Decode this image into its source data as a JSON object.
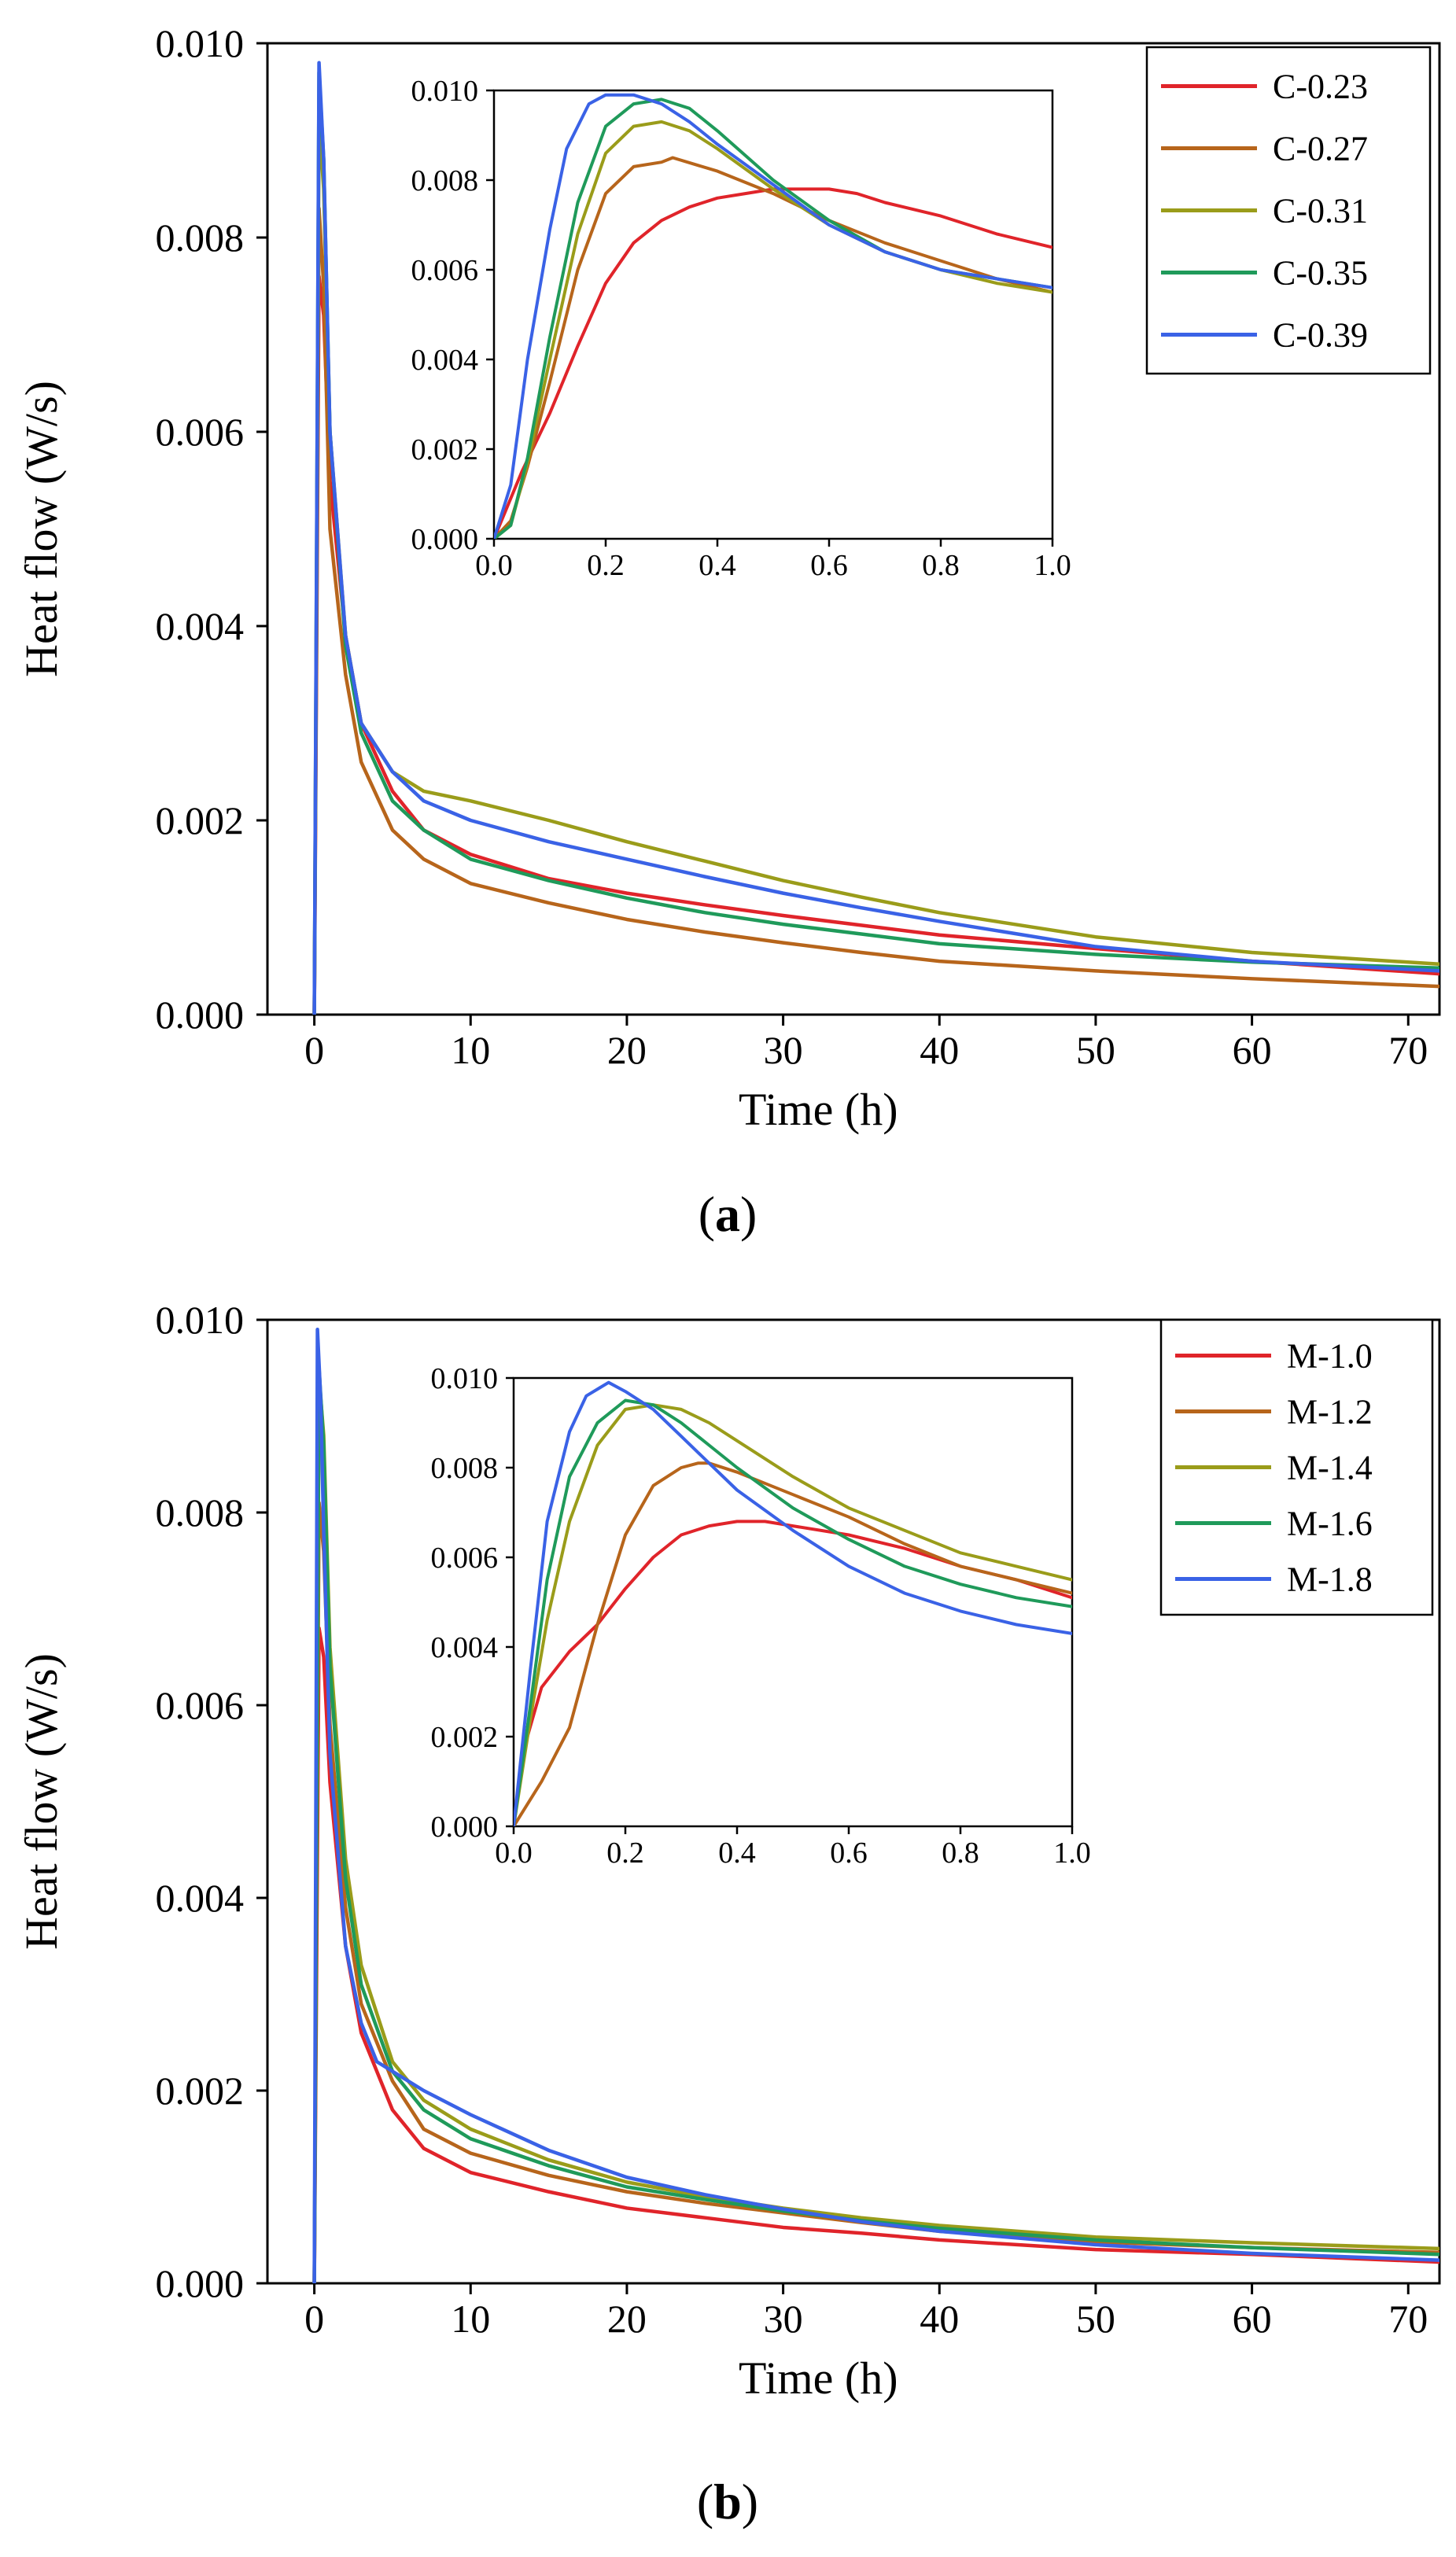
{
  "colors": {
    "red": "#e0242a",
    "brown": "#b7651b",
    "olive": "#9a9c1a",
    "green": "#1f9a5a",
    "blue": "#3a62e6"
  },
  "chart_data": [
    {
      "type": "line",
      "panel_label": "(a)",
      "panel_letter": "a",
      "xlabel": "Time (h)",
      "ylabel": "Heat flow (W/s)",
      "xlim": [
        -3,
        72
      ],
      "ylim": [
        0,
        0.01
      ],
      "xticks": [
        0,
        10,
        20,
        30,
        40,
        50,
        60,
        70
      ],
      "yticks": [
        0.0,
        0.002,
        0.004,
        0.006,
        0.008,
        0.01
      ],
      "ytick_labels": [
        "0.000",
        "0.002",
        "0.004",
        "0.006",
        "0.008",
        "0.010"
      ],
      "legend_position": "top-right",
      "series": [
        {
          "name": "C-0.23",
          "color": "#e0242a",
          "x": [
            0,
            0.3,
            0.6,
            1,
            2,
            3,
            5,
            7,
            10,
            15,
            20,
            25,
            30,
            35,
            40,
            50,
            60,
            72
          ],
          "y": [
            0,
            0.0076,
            0.0072,
            0.0055,
            0.0039,
            0.003,
            0.0023,
            0.0019,
            0.00165,
            0.0014,
            0.00125,
            0.00113,
            0.00102,
            0.00092,
            0.00082,
            0.00068,
            0.00055,
            0.00042
          ]
        },
        {
          "name": "C-0.27",
          "color": "#b7651b",
          "x": [
            0,
            0.3,
            0.6,
            1,
            2,
            3,
            5,
            7,
            10,
            15,
            20,
            25,
            30,
            35,
            40,
            50,
            60,
            72
          ],
          "y": [
            0,
            0.0083,
            0.0075,
            0.005,
            0.0035,
            0.0026,
            0.0019,
            0.0016,
            0.00135,
            0.00115,
            0.00098,
            0.00085,
            0.00074,
            0.00064,
            0.00055,
            0.00045,
            0.00037,
            0.00029
          ]
        },
        {
          "name": "C-0.31",
          "color": "#9a9c1a",
          "x": [
            0,
            0.3,
            0.6,
            1,
            2,
            3,
            5,
            7,
            10,
            15,
            20,
            25,
            30,
            35,
            40,
            50,
            60,
            72
          ],
          "y": [
            0,
            0.0092,
            0.0085,
            0.006,
            0.0039,
            0.003,
            0.0025,
            0.0023,
            0.0022,
            0.002,
            0.00178,
            0.00158,
            0.00138,
            0.00121,
            0.00105,
            0.0008,
            0.00064,
            0.00052
          ]
        },
        {
          "name": "C-0.35",
          "color": "#1f9a5a",
          "x": [
            0,
            0.3,
            0.6,
            1,
            2,
            3,
            5,
            7,
            10,
            15,
            20,
            25,
            30,
            35,
            40,
            50,
            60,
            72
          ],
          "y": [
            0,
            0.0097,
            0.0088,
            0.006,
            0.0038,
            0.0029,
            0.0022,
            0.0019,
            0.0016,
            0.00138,
            0.0012,
            0.00105,
            0.00093,
            0.00083,
            0.00073,
            0.00062,
            0.00054,
            0.00048
          ]
        },
        {
          "name": "C-0.39",
          "color": "#3a62e6",
          "x": [
            0,
            0.3,
            0.6,
            1,
            2,
            3,
            5,
            7,
            10,
            15,
            20,
            25,
            30,
            35,
            40,
            50,
            60,
            72
          ],
          "y": [
            0,
            0.0098,
            0.0088,
            0.006,
            0.0039,
            0.003,
            0.0025,
            0.0022,
            0.002,
            0.00178,
            0.0016,
            0.00142,
            0.00125,
            0.0011,
            0.00096,
            0.0007,
            0.00055,
            0.00045
          ]
        }
      ],
      "inset": {
        "xlim": [
          0,
          1
        ],
        "ylim": [
          0,
          0.01
        ],
        "xticks": [
          0,
          0.2,
          0.4,
          0.6,
          0.8,
          1.0
        ],
        "xtick_labels": [
          "0.0",
          "0.2",
          "0.4",
          "0.6",
          "0.8",
          "1.0"
        ],
        "yticks": [
          0,
          0.002,
          0.004,
          0.006,
          0.008,
          0.01
        ],
        "ytick_labels": [
          "0.000",
          "0.002",
          "0.004",
          "0.006",
          "0.008",
          "0.010"
        ],
        "series": [
          {
            "name": "C-0.23",
            "color": "#e0242a",
            "x": [
              0,
              0.05,
              0.1,
              0.15,
              0.2,
              0.25,
              0.3,
              0.35,
              0.4,
              0.45,
              0.5,
              0.55,
              0.6,
              0.65,
              0.7,
              0.8,
              0.9,
              1.0
            ],
            "y": [
              0,
              0.0015,
              0.0028,
              0.0043,
              0.0057,
              0.0066,
              0.0071,
              0.0074,
              0.0076,
              0.0077,
              0.0078,
              0.0078,
              0.0078,
              0.0077,
              0.0075,
              0.0072,
              0.0068,
              0.0065
            ]
          },
          {
            "name": "C-0.27",
            "color": "#b7651b",
            "x": [
              0,
              0.03,
              0.06,
              0.1,
              0.15,
              0.2,
              0.25,
              0.3,
              0.32,
              0.4,
              0.5,
              0.6,
              0.7,
              0.8,
              0.9,
              1.0
            ],
            "y": [
              0,
              0.0004,
              0.0016,
              0.0035,
              0.006,
              0.0077,
              0.0083,
              0.0084,
              0.0085,
              0.0082,
              0.0077,
              0.0071,
              0.0066,
              0.0062,
              0.0058,
              0.0055
            ]
          },
          {
            "name": "C-0.31",
            "color": "#9a9c1a",
            "x": [
              0,
              0.03,
              0.06,
              0.1,
              0.15,
              0.2,
              0.25,
              0.3,
              0.35,
              0.4,
              0.5,
              0.6,
              0.7,
              0.8,
              0.9,
              1.0
            ],
            "y": [
              0,
              0.0003,
              0.0017,
              0.004,
              0.0068,
              0.0086,
              0.0092,
              0.0093,
              0.0091,
              0.0087,
              0.0078,
              0.007,
              0.0064,
              0.006,
              0.0057,
              0.0055
            ]
          },
          {
            "name": "C-0.35",
            "color": "#1f9a5a",
            "x": [
              0,
              0.03,
              0.06,
              0.1,
              0.15,
              0.2,
              0.25,
              0.3,
              0.35,
              0.4,
              0.5,
              0.6,
              0.7,
              0.8,
              0.9,
              1.0
            ],
            "y": [
              0,
              0.0003,
              0.0018,
              0.0045,
              0.0075,
              0.0092,
              0.0097,
              0.0098,
              0.0096,
              0.0091,
              0.008,
              0.0071,
              0.0064,
              0.006,
              0.0058,
              0.0056
            ]
          },
          {
            "name": "C-0.39",
            "color": "#3a62e6",
            "x": [
              0,
              0.03,
              0.06,
              0.1,
              0.13,
              0.17,
              0.2,
              0.25,
              0.3,
              0.35,
              0.4,
              0.5,
              0.6,
              0.7,
              0.8,
              0.9,
              1.0
            ],
            "y": [
              0,
              0.0012,
              0.004,
              0.0069,
              0.0087,
              0.0097,
              0.0099,
              0.0099,
              0.0097,
              0.0093,
              0.0088,
              0.0079,
              0.007,
              0.0064,
              0.006,
              0.0058,
              0.0056
            ]
          }
        ]
      }
    },
    {
      "type": "line",
      "panel_label": "(b)",
      "panel_letter": "b",
      "xlabel": "Time (h)",
      "ylabel": "Heat flow  (W/s)",
      "xlim": [
        -3,
        72
      ],
      "ylim": [
        0,
        0.01
      ],
      "xticks": [
        0,
        10,
        20,
        30,
        40,
        50,
        60,
        70
      ],
      "yticks": [
        0.0,
        0.002,
        0.004,
        0.006,
        0.008,
        0.01
      ],
      "ytick_labels": [
        "0.000",
        "0.002",
        "0.004",
        "0.006",
        "0.008",
        "0.010"
      ],
      "legend_position": "top-right",
      "series": [
        {
          "name": "M-1.0",
          "color": "#e0242a",
          "x": [
            0,
            0.3,
            0.6,
            1,
            2,
            3,
            5,
            7,
            10,
            15,
            20,
            25,
            30,
            35,
            40,
            50,
            60,
            72
          ],
          "y": [
            0,
            0.0068,
            0.0065,
            0.0052,
            0.0035,
            0.0026,
            0.0018,
            0.0014,
            0.00115,
            0.00095,
            0.00078,
            0.00068,
            0.00058,
            0.00052,
            0.00045,
            0.00035,
            0.0003,
            0.00022
          ]
        },
        {
          "name": "M-1.2",
          "color": "#b7651b",
          "x": [
            0,
            0.3,
            0.6,
            1,
            2,
            3,
            5,
            7,
            10,
            15,
            20,
            25,
            30,
            35,
            40,
            50,
            60,
            72
          ],
          "y": [
            0,
            0.0081,
            0.0076,
            0.0058,
            0.0039,
            0.0029,
            0.0021,
            0.0016,
            0.00135,
            0.00112,
            0.00095,
            0.00083,
            0.00073,
            0.00063,
            0.00054,
            0.00043,
            0.00037,
            0.00032
          ]
        },
        {
          "name": "M-1.4",
          "color": "#9a9c1a",
          "x": [
            0,
            0.3,
            0.6,
            1,
            2,
            3,
            5,
            7,
            10,
            15,
            20,
            25,
            30,
            35,
            40,
            50,
            60,
            72
          ],
          "y": [
            0,
            0.0094,
            0.0088,
            0.0066,
            0.0044,
            0.0033,
            0.0023,
            0.0019,
            0.0016,
            0.00128,
            0.00105,
            0.0009,
            0.00078,
            0.00068,
            0.0006,
            0.00048,
            0.00042,
            0.00036
          ]
        },
        {
          "name": "M-1.6",
          "color": "#1f9a5a",
          "x": [
            0,
            0.3,
            0.6,
            1,
            2,
            3,
            5,
            7,
            10,
            15,
            20,
            25,
            30,
            35,
            40,
            50,
            60,
            72
          ],
          "y": [
            0,
            0.0095,
            0.0087,
            0.0064,
            0.0042,
            0.0031,
            0.0022,
            0.0018,
            0.0015,
            0.00122,
            0.001,
            0.00087,
            0.00075,
            0.00065,
            0.00057,
            0.00045,
            0.00037,
            0.0003
          ]
        },
        {
          "name": "M-1.8",
          "color": "#3a62e6",
          "x": [
            0,
            0.2,
            0.4,
            0.6,
            1,
            2,
            3,
            4,
            5,
            7,
            10,
            15,
            20,
            25,
            30,
            35,
            40,
            50,
            60,
            72
          ],
          "y": [
            0,
            0.0099,
            0.0092,
            0.0078,
            0.0055,
            0.0035,
            0.0027,
            0.0023,
            0.0022,
            0.002,
            0.00175,
            0.00138,
            0.0011,
            0.00092,
            0.00077,
            0.00064,
            0.00054,
            0.0004,
            0.00031,
            0.00024
          ]
        }
      ],
      "inset": {
        "xlim": [
          0,
          1
        ],
        "ylim": [
          0,
          0.01
        ],
        "xticks": [
          0,
          0.2,
          0.4,
          0.6,
          0.8,
          1.0
        ],
        "xtick_labels": [
          "0.0",
          "0.2",
          "0.4",
          "0.6",
          "0.8",
          "1.0"
        ],
        "yticks": [
          0,
          0.002,
          0.004,
          0.006,
          0.008,
          0.01
        ],
        "ytick_labels": [
          "0.000",
          "0.002",
          "0.004",
          "0.006",
          "0.008",
          "0.010"
        ],
        "series": [
          {
            "name": "M-1.0",
            "color": "#e0242a",
            "x": [
              0,
              0.02,
              0.05,
              0.1,
              0.15,
              0.2,
              0.25,
              0.3,
              0.35,
              0.4,
              0.45,
              0.5,
              0.6,
              0.7,
              0.8,
              0.9,
              1.0
            ],
            "y": [
              0,
              0.0018,
              0.0031,
              0.0039,
              0.0045,
              0.0053,
              0.006,
              0.0065,
              0.0067,
              0.0068,
              0.0068,
              0.0067,
              0.0065,
              0.0062,
              0.0058,
              0.0055,
              0.0051
            ]
          },
          {
            "name": "M-1.2",
            "color": "#b7651b",
            "x": [
              0,
              0.05,
              0.1,
              0.15,
              0.2,
              0.25,
              0.3,
              0.33,
              0.35,
              0.4,
              0.5,
              0.6,
              0.7,
              0.8,
              0.9,
              1.0
            ],
            "y": [
              0,
              0.001,
              0.0022,
              0.0045,
              0.0065,
              0.0076,
              0.008,
              0.0081,
              0.0081,
              0.0079,
              0.0074,
              0.0069,
              0.0063,
              0.0058,
              0.0055,
              0.0052
            ]
          },
          {
            "name": "M-1.4",
            "color": "#9a9c1a",
            "x": [
              0,
              0.03,
              0.06,
              0.1,
              0.15,
              0.2,
              0.25,
              0.3,
              0.35,
              0.4,
              0.5,
              0.6,
              0.7,
              0.8,
              0.9,
              1.0
            ],
            "y": [
              0,
              0.0024,
              0.0046,
              0.0068,
              0.0085,
              0.0093,
              0.0094,
              0.0093,
              0.009,
              0.0086,
              0.0078,
              0.0071,
              0.0066,
              0.0061,
              0.0058,
              0.0055
            ]
          },
          {
            "name": "M-1.6",
            "color": "#1f9a5a",
            "x": [
              0,
              0.03,
              0.06,
              0.1,
              0.15,
              0.2,
              0.25,
              0.3,
              0.35,
              0.4,
              0.5,
              0.6,
              0.7,
              0.8,
              0.9,
              1.0
            ],
            "y": [
              0,
              0.0027,
              0.0055,
              0.0078,
              0.009,
              0.0095,
              0.0094,
              0.009,
              0.0085,
              0.008,
              0.0071,
              0.0064,
              0.0058,
              0.0054,
              0.0051,
              0.0049
            ]
          },
          {
            "name": "M-1.8",
            "color": "#3a62e6",
            "x": [
              0,
              0.03,
              0.06,
              0.1,
              0.13,
              0.17,
              0.2,
              0.25,
              0.3,
              0.35,
              0.4,
              0.5,
              0.6,
              0.7,
              0.8,
              0.9,
              1.0
            ],
            "y": [
              0,
              0.0035,
              0.0068,
              0.0088,
              0.0096,
              0.0099,
              0.0097,
              0.0093,
              0.0087,
              0.0081,
              0.0075,
              0.0066,
              0.0058,
              0.0052,
              0.0048,
              0.0045,
              0.0043
            ]
          }
        ]
      }
    }
  ]
}
